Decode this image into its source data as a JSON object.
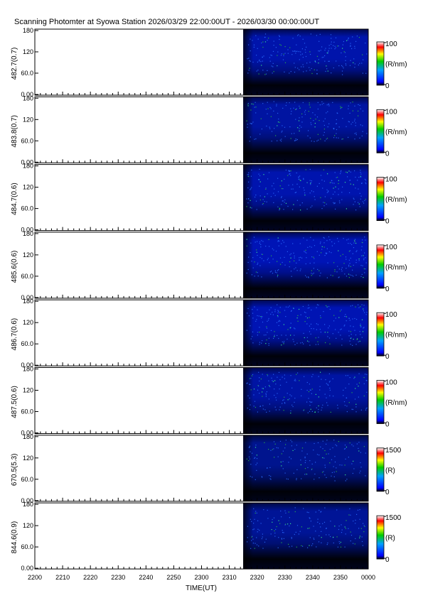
{
  "chart_data": {
    "type": "heatmap",
    "title": "Scanning Photomter at Syowa Station 2026/03/29 22:00:00UT - 2026/03/30 00:00:00UT",
    "xlabel": "TIME(UT)",
    "x_ticks": [
      "2200",
      "2210",
      "2220",
      "2230",
      "2240",
      "2250",
      "2300",
      "2310",
      "2320",
      "2330",
      "2340",
      "2350",
      "0000"
    ],
    "data_start_tick_fraction": 0.625,
    "colormap": [
      "black",
      "blue",
      "green",
      "yellow",
      "red",
      "white"
    ],
    "panels": [
      {
        "ylabel": "482.7(0.7)",
        "yticks": [
          "180",
          "120",
          "60.0",
          "0.00"
        ],
        "ylim": [
          0,
          180
        ],
        "cb_max": "100",
        "cb_min": "0",
        "cb_unit": "(R/nm)",
        "intensity": 0.38
      },
      {
        "ylabel": "483.8(0.7)",
        "yticks": [
          "180",
          "120",
          "60.0",
          "0.00"
        ],
        "ylim": [
          0,
          180
        ],
        "cb_max": "100",
        "cb_min": "0",
        "cb_unit": "(R/nm)",
        "intensity": 0.3
      },
      {
        "ylabel": "484.7(0.6)",
        "yticks": [
          "180",
          "120",
          "60.0",
          "0.00"
        ],
        "ylim": [
          0,
          180
        ],
        "cb_max": "100",
        "cb_min": "0",
        "cb_unit": "(R/nm)",
        "intensity": 0.4
      },
      {
        "ylabel": "485.6(0.6)",
        "yticks": [
          "180",
          "120",
          "60.0",
          "0.00"
        ],
        "ylim": [
          0,
          180
        ],
        "cb_max": "100",
        "cb_min": "0",
        "cb_unit": "(R/nm)",
        "intensity": 0.46
      },
      {
        "ylabel": "486.7(0.6)",
        "yticks": [
          "180",
          "120",
          "60.0",
          "0.00"
        ],
        "ylim": [
          0,
          180
        ],
        "cb_max": "100",
        "cb_min": "0",
        "cb_unit": "(R/nm)",
        "intensity": 0.44
      },
      {
        "ylabel": "487.5(0.6)",
        "yticks": [
          "180",
          "120",
          "60.0",
          "0.00"
        ],
        "ylim": [
          0,
          180
        ],
        "cb_max": "100",
        "cb_min": "0",
        "cb_unit": "(R/nm)",
        "intensity": 0.32
      },
      {
        "ylabel": "670.5(5.3)",
        "yticks": [
          "180",
          "120",
          "60.0",
          "0.00"
        ],
        "ylim": [
          0,
          180
        ],
        "cb_max": "1500",
        "cb_min": "0",
        "cb_unit": "(R)",
        "intensity": 0.16
      },
      {
        "ylabel": "844.6(0.9)",
        "yticks": [
          "180",
          "120",
          "60.0",
          "0.00"
        ],
        "ylim": [
          0,
          180
        ],
        "cb_max": "1500",
        "cb_min": "0",
        "cb_unit": "(R)",
        "intensity": 0.22
      }
    ]
  }
}
